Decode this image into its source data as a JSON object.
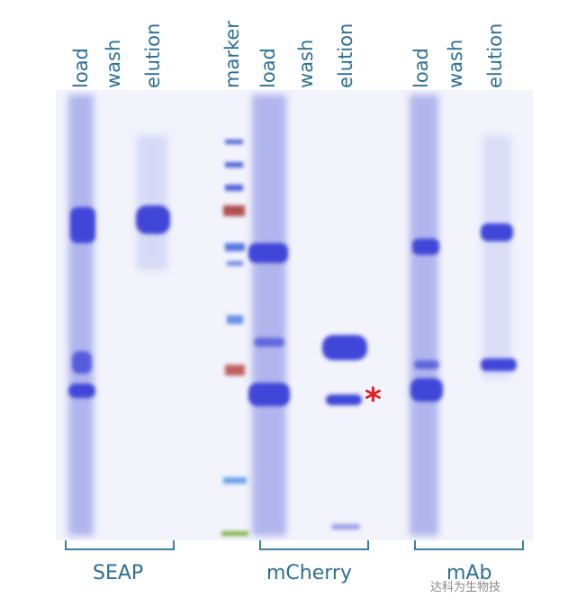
{
  "lane_labels": [
    "load",
    "wash",
    "elution",
    "marker",
    "load",
    "wash",
    "elution",
    "load",
    "wash",
    "elution"
  ],
  "groups": [
    "SEAP",
    "mCherry",
    "mAb"
  ],
  "annotation_mark": "*",
  "watermark": "达科为生物技",
  "colors": {
    "stain": "#3f47d8",
    "label": "#2e6f95",
    "asterisk": "#e02020",
    "marker_red": "#b05050",
    "marker_green": "#7ab040"
  }
}
